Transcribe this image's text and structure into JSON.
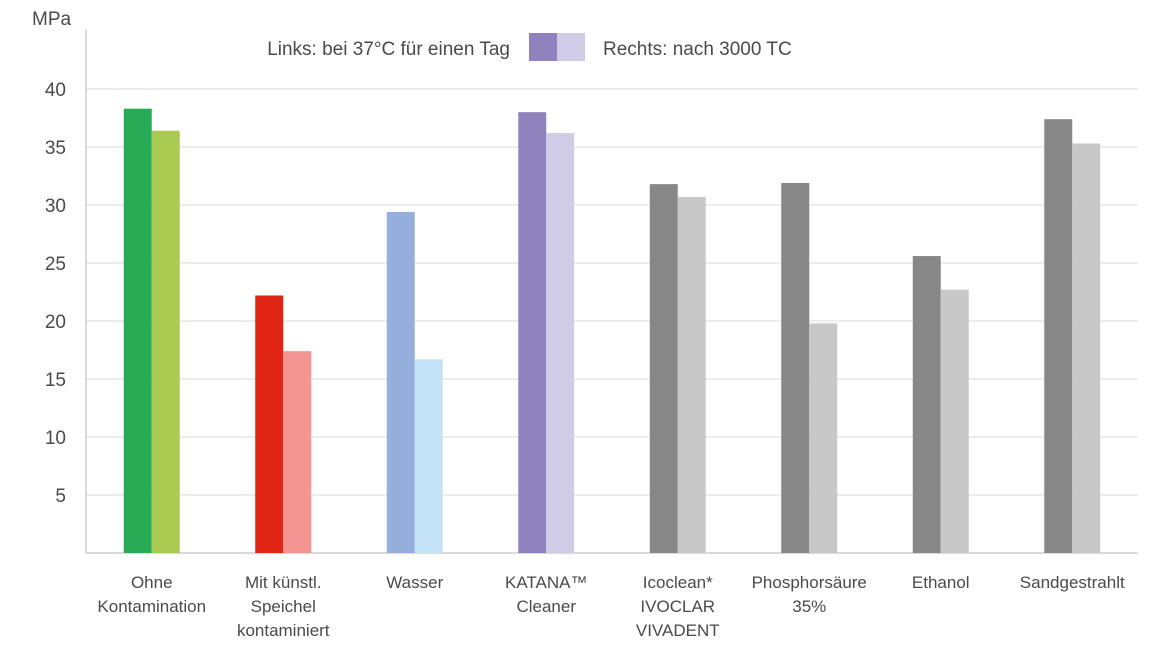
{
  "chart_data": {
    "type": "bar",
    "unit_label": "MPa",
    "ylim": [
      0,
      45
    ],
    "yticks": [
      5,
      10,
      15,
      20,
      25,
      30,
      35,
      40
    ],
    "grid": true,
    "legend": {
      "left_text": "Links: bei 37°C für einen Tag",
      "right_text": "Rechts: nach 3000 TC",
      "swatch_dark": "#8f82bd",
      "swatch_light": "#d0cbe6",
      "placement": "top"
    },
    "categories": [
      {
        "label_lines": [
          "Ohne",
          "Kontamination"
        ],
        "values": [
          38.3,
          36.4
        ],
        "colors": [
          "#27ab55",
          "#a9cb51"
        ]
      },
      {
        "label_lines": [
          "Mit künstl.",
          "Speichel",
          "kontaminiert"
        ],
        "values": [
          22.2,
          17.4
        ],
        "colors": [
          "#e02514",
          "#f39591"
        ]
      },
      {
        "label_lines": [
          "Wasser"
        ],
        "values": [
          29.4,
          16.7
        ],
        "colors": [
          "#95aedc",
          "#c4e3f6"
        ]
      },
      {
        "label_lines": [
          "KATANA™",
          "Cleaner"
        ],
        "values": [
          38.0,
          36.2
        ],
        "colors": [
          "#8f82bd",
          "#d0cbe6"
        ]
      },
      {
        "label_lines": [
          "Icoclean*",
          "IVOCLAR",
          "VIVADENT"
        ],
        "values": [
          31.8,
          30.7
        ],
        "colors": [
          "#878787",
          "#c8c8c8"
        ]
      },
      {
        "label_lines": [
          "Phosphorsäure",
          "35%"
        ],
        "values": [
          31.9,
          19.8
        ],
        "colors": [
          "#878787",
          "#c8c8c8"
        ]
      },
      {
        "label_lines": [
          "Ethanol"
        ],
        "values": [
          25.6,
          22.7
        ],
        "colors": [
          "#878787",
          "#c8c8c8"
        ]
      },
      {
        "label_lines": [
          "Sandgestrahlt"
        ],
        "values": [
          37.4,
          35.3
        ],
        "colors": [
          "#878787",
          "#c8c8c8"
        ]
      }
    ]
  }
}
